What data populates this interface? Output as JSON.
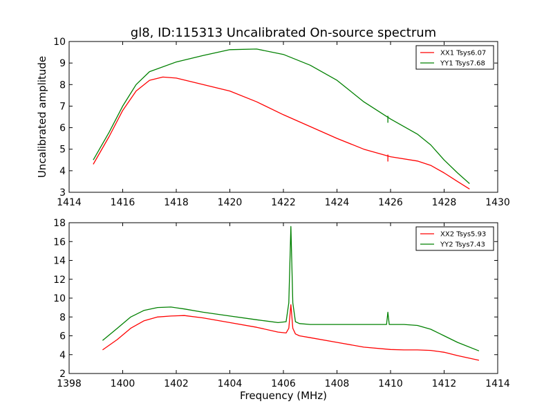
{
  "figure": {
    "title": "gl8, ID:115313 Uncalibrated On-source spectrum"
  },
  "chart_data": [
    {
      "type": "line",
      "title": "gl8, ID:115313 Uncalibrated On-source spectrum",
      "xlabel": "",
      "ylabel": "Uncalibrated amplitude",
      "xlim": [
        1414,
        1430
      ],
      "ylim": [
        3,
        10
      ],
      "xticks": [
        1414,
        1416,
        1418,
        1420,
        1422,
        1424,
        1426,
        1428,
        1430
      ],
      "yticks": [
        3,
        4,
        5,
        6,
        7,
        8,
        9,
        10
      ],
      "grid": false,
      "legend": "top-right",
      "series": [
        {
          "name": "XX1 Tsys6.07",
          "color": "#ff0000",
          "x": [
            1414.9,
            1415.5,
            1416.0,
            1416.5,
            1417.0,
            1417.5,
            1418.0,
            1419.0,
            1420.0,
            1421.0,
            1422.0,
            1423.0,
            1424.0,
            1425.0,
            1426.0,
            1427.0,
            1427.5,
            1428.0,
            1428.5,
            1428.95
          ],
          "values": [
            4.3,
            5.6,
            6.8,
            7.7,
            8.2,
            8.35,
            8.3,
            8.0,
            7.7,
            7.2,
            6.6,
            6.05,
            5.5,
            5.0,
            4.65,
            4.45,
            4.25,
            3.9,
            3.5,
            3.15
          ]
        },
        {
          "name": "YY1 Tsys7.68",
          "color": "#008000",
          "x": [
            1414.9,
            1415.5,
            1416.0,
            1416.5,
            1417.0,
            1418.0,
            1419.0,
            1420.0,
            1421.0,
            1422.0,
            1423.0,
            1424.0,
            1425.0,
            1426.0,
            1427.0,
            1427.5,
            1428.0,
            1428.5,
            1428.95
          ],
          "values": [
            4.5,
            5.8,
            7.0,
            8.0,
            8.6,
            9.05,
            9.35,
            9.62,
            9.65,
            9.4,
            8.9,
            8.2,
            7.2,
            6.4,
            5.7,
            5.2,
            4.5,
            3.9,
            3.4
          ]
        }
      ],
      "spikes": [
        {
          "series": 0,
          "x": 1425.9,
          "value": 4.75
        },
        {
          "series": 1,
          "x": 1425.9,
          "value": 6.55
        }
      ]
    },
    {
      "type": "line",
      "title": "",
      "xlabel": "Frequency (MHz)",
      "ylabel": "",
      "xlim": [
        1398,
        1414
      ],
      "ylim": [
        2,
        18
      ],
      "xticks": [
        1398,
        1400,
        1402,
        1404,
        1406,
        1408,
        1410,
        1412,
        1414
      ],
      "yticks": [
        2,
        4,
        6,
        8,
        10,
        12,
        14,
        16,
        18
      ],
      "grid": false,
      "legend": "top-right",
      "series": [
        {
          "name": "XX2 Tsys5.93",
          "color": "#ff0000",
          "x": [
            1399.25,
            1399.8,
            1400.3,
            1400.8,
            1401.3,
            1401.8,
            1402.3,
            1403.0,
            1404.0,
            1405.0,
            1405.8,
            1406.1,
            1406.2,
            1406.28,
            1406.35,
            1406.45,
            1406.6,
            1407.0,
            1408.0,
            1409.0,
            1410.0,
            1410.5,
            1411.0,
            1411.5,
            1412.0,
            1412.5,
            1413.3
          ],
          "values": [
            4.5,
            5.6,
            6.8,
            7.6,
            8.0,
            8.1,
            8.15,
            7.9,
            7.4,
            6.9,
            6.4,
            6.3,
            6.8,
            9.3,
            6.8,
            6.2,
            6.0,
            5.8,
            5.3,
            4.8,
            4.55,
            4.5,
            4.5,
            4.45,
            4.25,
            3.9,
            3.4
          ]
        },
        {
          "name": "YY2 Tsys7.43",
          "color": "#008000",
          "x": [
            1399.25,
            1399.8,
            1400.3,
            1400.8,
            1401.3,
            1401.8,
            1402.3,
            1403.0,
            1404.0,
            1405.0,
            1405.8,
            1406.1,
            1406.2,
            1406.28,
            1406.35,
            1406.45,
            1406.6,
            1407.0,
            1408.0,
            1409.0,
            1409.85,
            1409.9,
            1409.95,
            1410.5,
            1411.0,
            1411.5,
            1412.0,
            1412.5,
            1413.3
          ],
          "values": [
            5.5,
            6.8,
            8.0,
            8.7,
            9.0,
            9.05,
            8.85,
            8.5,
            8.1,
            7.7,
            7.4,
            7.5,
            9.5,
            17.6,
            9.5,
            7.5,
            7.3,
            7.2,
            7.2,
            7.2,
            7.2,
            8.5,
            7.2,
            7.2,
            7.1,
            6.7,
            6.0,
            5.3,
            4.4
          ]
        }
      ]
    }
  ]
}
